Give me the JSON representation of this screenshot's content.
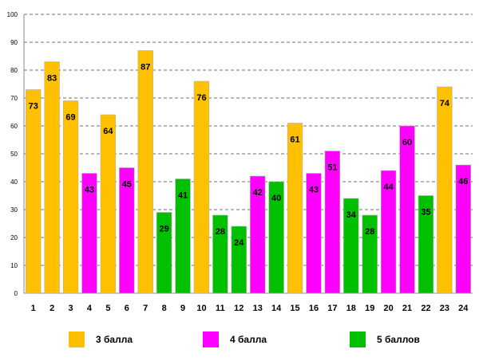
{
  "chart_data": {
    "type": "bar",
    "title": "",
    "xlabel": "",
    "ylabel": "",
    "ylim": [
      0,
      100
    ],
    "yticks": [
      0,
      10,
      20,
      30,
      40,
      50,
      60,
      70,
      80,
      90,
      100
    ],
    "grid": true,
    "categories": [
      "1",
      "2",
      "3",
      "4",
      "5",
      "6",
      "7",
      "8",
      "9",
      "10",
      "11",
      "12",
      "13",
      "14",
      "15",
      "16",
      "17",
      "18",
      "19",
      "20",
      "21",
      "22",
      "23",
      "24"
    ],
    "values": [
      73,
      83,
      69,
      43,
      64,
      45,
      87,
      29,
      41,
      76,
      28,
      24,
      42,
      40,
      61,
      43,
      51,
      34,
      28,
      44,
      60,
      35,
      74,
      46
    ],
    "groups": [
      "3",
      "3",
      "3",
      "4",
      "3",
      "4",
      "3",
      "5",
      "5",
      "3",
      "5",
      "5",
      "4",
      "5",
      "3",
      "4",
      "4",
      "5",
      "5",
      "4",
      "4",
      "5",
      "3",
      "4"
    ],
    "legend": [
      {
        "key": "3",
        "label": "3 балла",
        "color": "#ffc000"
      },
      {
        "key": "4",
        "label": "4 балла",
        "color": "#ff00ff"
      },
      {
        "key": "5",
        "label": "5 баллов",
        "color": "#00c000"
      }
    ],
    "legend_position": "bottom"
  }
}
